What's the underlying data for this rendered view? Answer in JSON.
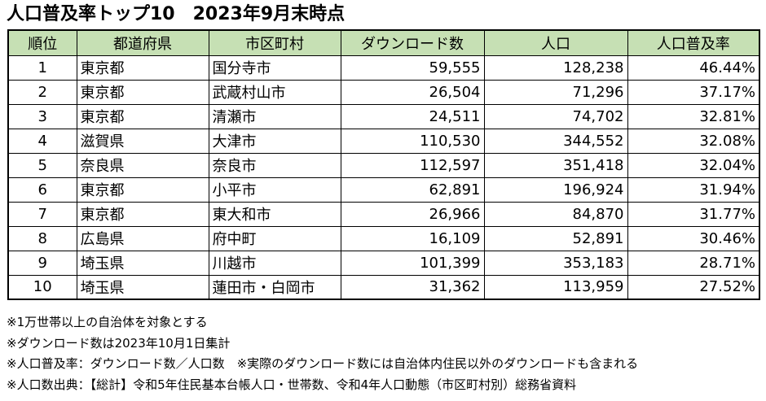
{
  "title": "人口普及率トップ10　2023年9月末時点",
  "table": {
    "headers": [
      "順位",
      "都道府県",
      "市区町村",
      "ダウンロード数",
      "人口",
      "人口普及率"
    ],
    "rows": [
      [
        "1",
        "東京都",
        "国分寺市",
        "59,555",
        "128,238",
        "46.44%"
      ],
      [
        "2",
        "東京都",
        "武蔵村山市",
        "26,504",
        "71,296",
        "37.17%"
      ],
      [
        "3",
        "東京都",
        "清瀬市",
        "24,511",
        "74,702",
        "32.81%"
      ],
      [
        "4",
        "滋賀県",
        "大津市",
        "110,530",
        "344,552",
        "32.08%"
      ],
      [
        "5",
        "奈良県",
        "奈良市",
        "112,597",
        "351,418",
        "32.04%"
      ],
      [
        "6",
        "東京都",
        "小平市",
        "62,891",
        "196,924",
        "31.94%"
      ],
      [
        "7",
        "東京都",
        "東大和市",
        "26,966",
        "84,870",
        "31.77%"
      ],
      [
        "8",
        "広島県",
        "府中町",
        "16,109",
        "52,891",
        "30.46%"
      ],
      [
        "9",
        "埼玉県",
        "川越市",
        "101,399",
        "353,183",
        "28.71%"
      ],
      [
        "10",
        "埼玉県",
        "蓮田市・白岡市",
        "31,362",
        "113,959",
        "27.52%"
      ]
    ]
  },
  "notes": [
    "※1万世帯以上の自治体を対象とする",
    "※ダウンロード数は2023年10月1日集計",
    "※人口普及率：ダウンロード数／人口数　※実際のダウンロード数には自治体内住民以外のダウンロードも含まれる",
    "※人口数出典：【総計】令和5年住民基本台帳人口・世帯数、令和4年人口動態（市区町村別）総務省資料"
  ],
  "colors": {
    "header_bg": "#c6e0b4"
  }
}
